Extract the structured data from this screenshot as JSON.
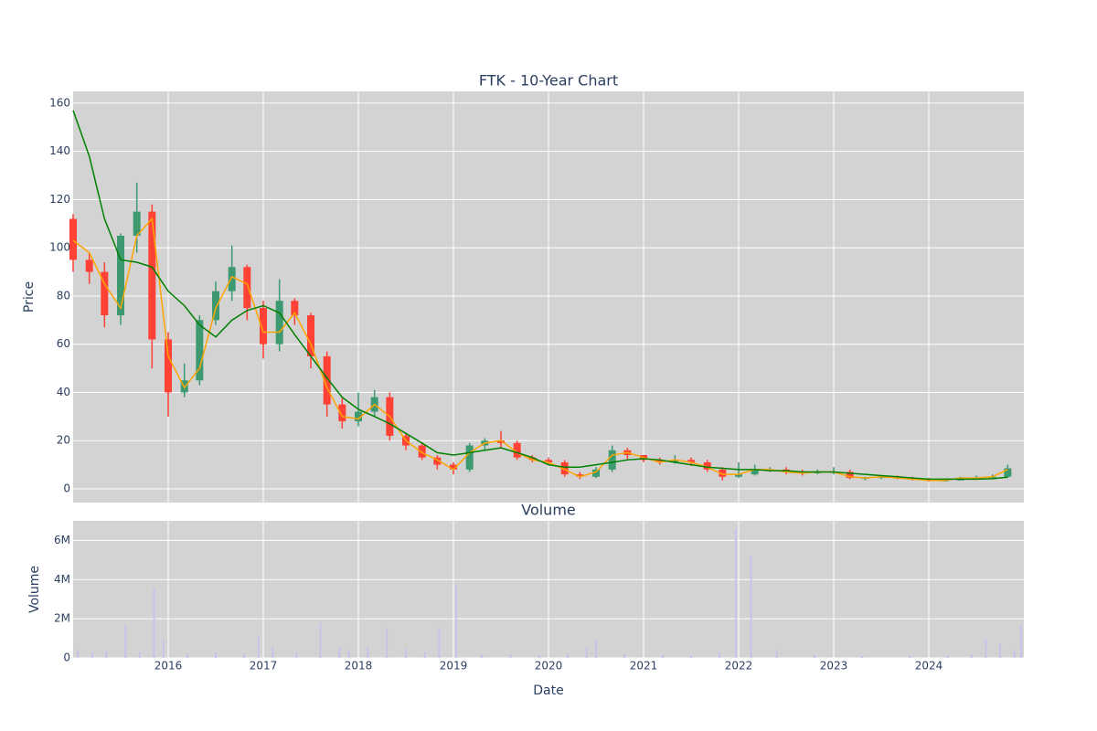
{
  "chart_data": [
    {
      "type": "candlestick",
      "title": "FTK - 10-Year Chart",
      "ylabel": "Price",
      "x": [
        2015.0,
        2015.17,
        2015.33,
        2015.5,
        2015.67,
        2015.83,
        2016.0,
        2016.17,
        2016.33,
        2016.5,
        2016.67,
        2016.83,
        2017.0,
        2017.17,
        2017.33,
        2017.5,
        2017.67,
        2017.83,
        2018.0,
        2018.17,
        2018.33,
        2018.5,
        2018.67,
        2018.83,
        2019.0,
        2019.17,
        2019.33,
        2019.5,
        2019.67,
        2019.83,
        2020.0,
        2020.17,
        2020.33,
        2020.5,
        2020.67,
        2020.83,
        2021.0,
        2021.17,
        2021.33,
        2021.5,
        2021.67,
        2021.83,
        2022.0,
        2022.17,
        2022.33,
        2022.5,
        2022.67,
        2022.83,
        2023.0,
        2023.17,
        2023.33,
        2023.5,
        2023.67,
        2023.83,
        2024.0,
        2024.17,
        2024.33,
        2024.5,
        2024.67,
        2024.83
      ],
      "open": [
        112,
        95,
        90,
        72,
        105,
        115,
        62,
        40,
        45,
        70,
        82,
        92,
        75,
        60,
        78,
        72,
        55,
        35,
        28,
        32,
        38,
        22,
        18,
        13,
        10,
        8,
        18,
        20,
        19,
        13,
        12,
        11,
        6,
        5,
        8,
        16,
        14,
        12,
        11,
        12,
        11,
        8,
        5,
        6,
        8,
        8,
        7,
        6.5,
        7,
        7,
        4.5,
        4.5,
        5,
        4.5,
        4,
        3.5,
        3.5,
        4.5,
        4.5,
        5
      ],
      "high": [
        114,
        98,
        94,
        106,
        127,
        118,
        65,
        52,
        72,
        86,
        101,
        93,
        78,
        87,
        79,
        73,
        57,
        38,
        40,
        41,
        40,
        23,
        19,
        14,
        11,
        19,
        21,
        24,
        20,
        14,
        13,
        12,
        7,
        9,
        18,
        17,
        14,
        13,
        14,
        13,
        12,
        9,
        11,
        10,
        9,
        9,
        8,
        8,
        9,
        8,
        5,
        5.5,
        5.5,
        5,
        4.5,
        4,
        5,
        5.5,
        6,
        10
      ],
      "low": [
        90,
        85,
        67,
        68,
        98,
        50,
        30,
        38,
        43,
        68,
        78,
        70,
        54,
        57,
        68,
        50,
        30,
        25,
        26,
        30,
        20,
        16,
        12,
        8,
        6,
        7,
        16,
        17,
        12,
        11,
        10,
        5,
        4,
        4.5,
        7,
        12,
        11,
        10,
        10.5,
        9.5,
        7,
        3.5,
        4.5,
        5.5,
        7,
        6,
        5.5,
        6,
        6,
        4,
        3.5,
        4,
        4,
        3.5,
        3,
        3,
        3.5,
        4,
        4,
        4.5
      ],
      "close": [
        95,
        90,
        72,
        105,
        115,
        62,
        40,
        45,
        70,
        82,
        92,
        75,
        60,
        78,
        72,
        55,
        35,
        28,
        32,
        38,
        22,
        18,
        13,
        10,
        8,
        18,
        20,
        19,
        13,
        12,
        11,
        6,
        5,
        8,
        16,
        14,
        12,
        11,
        12,
        11,
        8,
        5,
        6,
        8,
        8,
        7,
        6.5,
        7,
        7,
        4.5,
        4.5,
        5,
        4.5,
        4,
        3.5,
        3.5,
        4.5,
        4.5,
        5,
        8.5
      ],
      "increasing_color": "#3d9970",
      "decreasing_color": "#ff4136",
      "series": [
        {
          "color": "orange",
          "values": [
            103,
            98,
            85,
            75,
            105,
            112,
            55,
            42,
            50,
            75,
            88,
            85,
            65,
            65,
            73,
            60,
            42,
            30,
            29,
            35,
            30,
            20,
            15,
            12,
            8,
            15,
            19,
            20,
            15,
            12,
            11,
            8,
            5,
            7,
            14,
            15,
            13,
            11,
            12,
            11,
            9,
            6,
            6,
            8,
            8,
            7,
            6.5,
            7,
            7,
            5,
            4.5,
            5,
            4.5,
            4,
            3.5,
            3.5,
            4.5,
            4.5,
            5,
            8
          ]
        },
        {
          "color": "green",
          "values": [
            157,
            138,
            112,
            95,
            94,
            92,
            82,
            76,
            68,
            63,
            70,
            74,
            76,
            73,
            64,
            55,
            46,
            38,
            33,
            30,
            27,
            23,
            19,
            15,
            14,
            15,
            16,
            17,
            15,
            13,
            10,
            9,
            9,
            10,
            11,
            12,
            12.5,
            12,
            11,
            10,
            9,
            8.5,
            8,
            8,
            7.5,
            7.5,
            7,
            7,
            7,
            6.5,
            6,
            5.5,
            5,
            4.5,
            4,
            4,
            4,
            4,
            4.2,
            4.8
          ]
        }
      ],
      "xlim": [
        2015.0,
        2025.0
      ],
      "xticks": [
        2016,
        2017,
        2018,
        2019,
        2020,
        2021,
        2022,
        2023,
        2024
      ],
      "ylim": [
        -5.7,
        164.9
      ],
      "yticks": [
        0,
        20,
        40,
        60,
        80,
        100,
        120,
        140,
        160
      ],
      "grid": true
    },
    {
      "type": "bar",
      "title": "Volume",
      "xlabel": "Date",
      "ylabel": "Volume",
      "x": [
        2015.05,
        2015.2,
        2015.35,
        2015.55,
        2015.7,
        2015.85,
        2015.95,
        2016.2,
        2016.5,
        2016.8,
        2016.95,
        2017.1,
        2017.35,
        2017.6,
        2017.8,
        2017.9,
        2018.1,
        2018.3,
        2018.5,
        2018.7,
        2018.85,
        2019.03,
        2019.3,
        2019.6,
        2019.9,
        2020.2,
        2020.4,
        2020.5,
        2020.8,
        2021.2,
        2021.5,
        2021.8,
        2021.97,
        2022.13,
        2022.4,
        2022.8,
        2023.3,
        2023.8,
        2024.2,
        2024.45,
        2024.6,
        2024.75,
        2024.9,
        2024.97
      ],
      "values": [
        400000,
        300000,
        350000,
        1700000,
        300000,
        3600000,
        900000,
        250000,
        300000,
        250000,
        1100000,
        600000,
        300000,
        1800000,
        500000,
        400000,
        600000,
        1500000,
        450000,
        300000,
        1500000,
        3700000,
        200000,
        200000,
        150000,
        250000,
        600000,
        900000,
        200000,
        150000,
        100000,
        300000,
        6600000,
        5200000,
        400000,
        150000,
        100000,
        100000,
        100000,
        200000,
        1000000,
        700000,
        400000,
        1700000
      ],
      "color": "#c5c5ec",
      "xlim": [
        2015.0,
        2025.0
      ],
      "xticks": [
        2016,
        2017,
        2018,
        2019,
        2020,
        2021,
        2022,
        2023,
        2024
      ],
      "ylim": [
        0,
        7000000
      ],
      "yticks": [
        0,
        {
          "value": 2000000,
          "label": "2M"
        },
        {
          "value": 4000000,
          "label": "4M"
        },
        {
          "value": 6000000,
          "label": "6M"
        }
      ],
      "grid": true
    }
  ]
}
